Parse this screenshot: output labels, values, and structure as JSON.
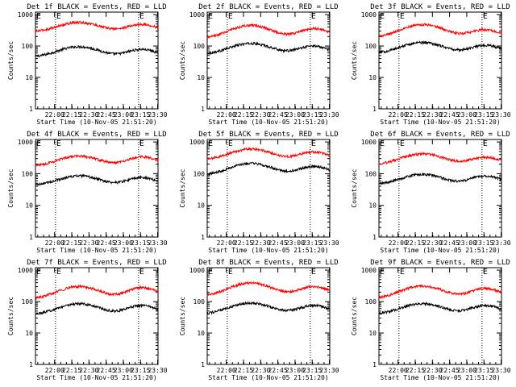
{
  "colors": {
    "background": "#ffffff",
    "axes": "#000000",
    "events": "#000000",
    "lld": "#ff0000"
  },
  "x_tick_labels": [
    "22:00",
    "22:15",
    "22:30",
    "22:45",
    "23:00",
    "23:15",
    "23:30"
  ],
  "y_tick_labels": [
    "1",
    "10",
    "100",
    "1000"
  ],
  "ylabel": "Counts/sec",
  "xlabel": "Start Time (10-Nov-05 21:51:20)",
  "marker_labels": [
    "E",
    "E"
  ],
  "chart_data": [
    {
      "type": "line",
      "title": "Det 1f BLACK = Events, RED = LLD",
      "xlabel": "Start Time (10-Nov-05 21:51:20)",
      "ylabel": "Counts/sec",
      "x_range_minutes": [
        -8,
        99
      ],
      "ylim": [
        1,
        1200
      ],
      "y_scale": "log",
      "grid": false,
      "markers_minutes": [
        9.5,
        82
      ],
      "series": [
        {
          "name": "Events",
          "color": "#000000",
          "base": 44,
          "peaks": [
            {
              "t": 30,
              "v": 95,
              "w": 16
            },
            {
              "t": 85,
              "v": 78,
              "w": 12
            }
          ]
        },
        {
          "name": "LLD",
          "color": "#ff0000",
          "base": 280,
          "peaks": [
            {
              "t": 30,
              "v": 560,
              "w": 16
            },
            {
              "t": 85,
              "v": 490,
              "w": 12
            }
          ]
        }
      ]
    },
    {
      "type": "line",
      "title": "Det 2f BLACK = Events, RED = LLD",
      "xlabel": "Start Time (10-Nov-05 21:51:20)",
      "ylabel": "Counts/sec",
      "x_range_minutes": [
        -8,
        99
      ],
      "ylim": [
        1,
        1200
      ],
      "y_scale": "log",
      "grid": false,
      "markers_minutes": [
        9.5,
        82
      ],
      "series": [
        {
          "name": "Events",
          "color": "#000000",
          "base": 55,
          "peaks": [
            {
              "t": 30,
              "v": 120,
              "w": 16
            },
            {
              "t": 85,
              "v": 100,
              "w": 12
            }
          ]
        },
        {
          "name": "LLD",
          "color": "#ff0000",
          "base": 170,
          "peaks": [
            {
              "t": 30,
              "v": 450,
              "w": 16
            },
            {
              "t": 85,
              "v": 360,
              "w": 12
            }
          ]
        }
      ]
    },
    {
      "type": "line",
      "title": "Det 3f BLACK = Events, RED = LLD",
      "xlabel": "Start Time (10-Nov-05 21:51:20)",
      "ylabel": "Counts/sec",
      "x_range_minutes": [
        -8,
        99
      ],
      "ylim": [
        1,
        1200
      ],
      "y_scale": "log",
      "grid": false,
      "markers_minutes": [
        9.5,
        82
      ],
      "series": [
        {
          "name": "Events",
          "color": "#000000",
          "base": 58,
          "peaks": [
            {
              "t": 30,
              "v": 130,
              "w": 16
            },
            {
              "t": 85,
              "v": 105,
              "w": 12
            }
          ]
        },
        {
          "name": "LLD",
          "color": "#ff0000",
          "base": 190,
          "peaks": [
            {
              "t": 30,
              "v": 480,
              "w": 16
            },
            {
              "t": 85,
              "v": 330,
              "w": 12
            }
          ]
        }
      ]
    },
    {
      "type": "line",
      "title": "Det 4f BLACK = Events, RED = LLD",
      "xlabel": "Start Time (10-Nov-05 21:51:20)",
      "ylabel": "Counts/sec",
      "x_range_minutes": [
        -8,
        99
      ],
      "ylim": [
        1,
        1200
      ],
      "y_scale": "log",
      "grid": false,
      "markers_minutes": [
        9.5,
        82
      ],
      "series": [
        {
          "name": "Events",
          "color": "#000000",
          "base": 42,
          "peaks": [
            {
              "t": 30,
              "v": 85,
              "w": 16
            },
            {
              "t": 85,
              "v": 75,
              "w": 12
            }
          ]
        },
        {
          "name": "LLD",
          "color": "#ff0000",
          "base": 170,
          "peaks": [
            {
              "t": 30,
              "v": 360,
              "w": 16
            },
            {
              "t": 85,
              "v": 340,
              "w": 12
            }
          ]
        }
      ]
    },
    {
      "type": "line",
      "title": "Det 5f BLACK = Events, RED = LLD",
      "xlabel": "Start Time (10-Nov-05 21:51:20)",
      "ylabel": "Counts/sec",
      "x_range_minutes": [
        -8,
        99
      ],
      "ylim": [
        1,
        1200
      ],
      "y_scale": "log",
      "grid": false,
      "markers_minutes": [
        9.5,
        82
      ],
      "series": [
        {
          "name": "Events",
          "color": "#000000",
          "base": 90,
          "peaks": [
            {
              "t": 30,
              "v": 210,
              "w": 16
            },
            {
              "t": 85,
              "v": 170,
              "w": 12
            }
          ]
        },
        {
          "name": "LLD",
          "color": "#ff0000",
          "base": 270,
          "peaks": [
            {
              "t": 30,
              "v": 600,
              "w": 16
            },
            {
              "t": 85,
              "v": 480,
              "w": 12
            }
          ]
        }
      ]
    },
    {
      "type": "line",
      "title": "Det 6f BLACK = Events, RED = LLD",
      "xlabel": "Start Time (10-Nov-05 21:51:20)",
      "ylabel": "Counts/sec",
      "x_range_minutes": [
        -8,
        99
      ],
      "ylim": [
        1,
        1200
      ],
      "y_scale": "log",
      "grid": false,
      "markers_minutes": [
        9.5,
        82
      ],
      "series": [
        {
          "name": "Events",
          "color": "#000000",
          "base": 45,
          "peaks": [
            {
              "t": 30,
              "v": 95,
              "w": 16
            },
            {
              "t": 85,
              "v": 85,
              "w": 12
            }
          ]
        },
        {
          "name": "LLD",
          "color": "#ff0000",
          "base": 195,
          "peaks": [
            {
              "t": 30,
              "v": 420,
              "w": 16
            },
            {
              "t": 85,
              "v": 330,
              "w": 12
            }
          ]
        }
      ]
    },
    {
      "type": "line",
      "title": "Det 7f BLACK = Events, RED = LLD",
      "xlabel": "Start Time (10-Nov-05 21:51:20)",
      "ylabel": "Counts/sec",
      "x_range_minutes": [
        -8,
        99
      ],
      "ylim": [
        1,
        1200
      ],
      "y_scale": "log",
      "grid": false,
      "markers_minutes": [
        9.5,
        82
      ],
      "series": [
        {
          "name": "Events",
          "color": "#000000",
          "base": 38,
          "peaks": [
            {
              "t": 30,
              "v": 85,
              "w": 16
            },
            {
              "t": 85,
              "v": 75,
              "w": 12
            }
          ]
        },
        {
          "name": "LLD",
          "color": "#ff0000",
          "base": 120,
          "peaks": [
            {
              "t": 30,
              "v": 300,
              "w": 16
            },
            {
              "t": 85,
              "v": 280,
              "w": 12
            }
          ]
        }
      ]
    },
    {
      "type": "line",
      "title": "Det 8f BLACK = Events, RED = LLD",
      "xlabel": "Start Time (10-Nov-05 21:51:20)",
      "ylabel": "Counts/sec",
      "x_range_minutes": [
        -8,
        99
      ],
      "ylim": [
        1,
        1200
      ],
      "y_scale": "log",
      "grid": false,
      "markers_minutes": [
        9.5,
        82
      ],
      "series": [
        {
          "name": "Events",
          "color": "#000000",
          "base": 40,
          "peaks": [
            {
              "t": 30,
              "v": 90,
              "w": 16
            },
            {
              "t": 85,
              "v": 75,
              "w": 12
            }
          ]
        },
        {
          "name": "LLD",
          "color": "#ff0000",
          "base": 150,
          "peaks": [
            {
              "t": 30,
              "v": 390,
              "w": 16
            },
            {
              "t": 85,
              "v": 300,
              "w": 12
            }
          ]
        }
      ]
    },
    {
      "type": "line",
      "title": "Det 9f BLACK = Events, RED = LLD",
      "xlabel": "Start Time (10-Nov-05 21:51:20)",
      "ylabel": "Counts/sec",
      "x_range_minutes": [
        -8,
        99
      ],
      "ylim": [
        1,
        1200
      ],
      "y_scale": "log",
      "grid": false,
      "markers_minutes": [
        9.5,
        82
      ],
      "series": [
        {
          "name": "Events",
          "color": "#000000",
          "base": 40,
          "peaks": [
            {
              "t": 30,
              "v": 85,
              "w": 16
            },
            {
              "t": 85,
              "v": 75,
              "w": 12
            }
          ]
        },
        {
          "name": "LLD",
          "color": "#ff0000",
          "base": 125,
          "peaks": [
            {
              "t": 30,
              "v": 310,
              "w": 16
            },
            {
              "t": 85,
              "v": 260,
              "w": 12
            }
          ]
        }
      ]
    }
  ]
}
